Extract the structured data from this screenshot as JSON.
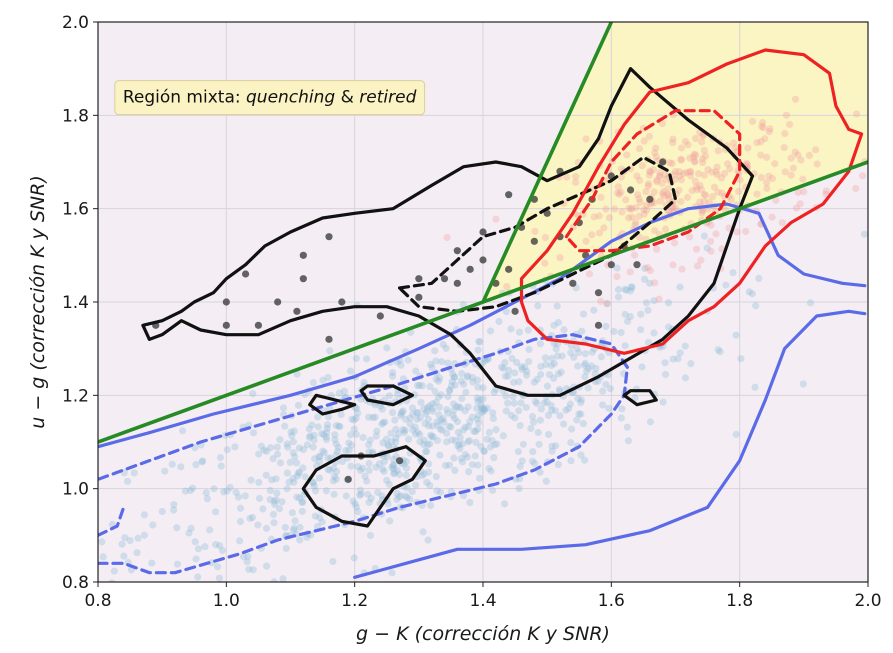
{
  "chart_data": {
    "type": "scatter",
    "xlabel_parts": [
      {
        "text": "g",
        "italic": true
      },
      {
        "text": " − ",
        "italic": false
      },
      {
        "text": "K",
        "italic": true
      },
      {
        "text": " (corrección K y SNR)",
        "italic": true
      }
    ],
    "ylabel_parts": [
      {
        "text": "u",
        "italic": true
      },
      {
        "text": " − ",
        "italic": false
      },
      {
        "text": "g",
        "italic": true
      },
      {
        "text": " (corrección K y SNR)",
        "italic": true
      }
    ],
    "xlim": [
      0.8,
      2.0
    ],
    "ylim": [
      0.8,
      2.0
    ],
    "xticks": [
      0.8,
      1.0,
      1.2,
      1.4,
      1.6,
      1.8,
      2.0
    ],
    "yticks": [
      0.8,
      1.0,
      1.2,
      1.4,
      1.6,
      1.8,
      2.0
    ],
    "xtick_labels": [
      "0.8",
      "1.0",
      "1.2",
      "1.4",
      "1.6",
      "1.8",
      "2.0"
    ],
    "ytick_labels": [
      "0.8",
      "1.0",
      "1.2",
      "1.4",
      "1.6",
      "1.8",
      "2.0"
    ],
    "grid": true,
    "annotation": {
      "parts": [
        {
          "text": "Región mixta: ",
          "italic": false
        },
        {
          "text": "quenching",
          "italic": true
        },
        {
          "text": " & ",
          "italic": false
        },
        {
          "text": "retired",
          "italic": true
        }
      ],
      "x": 0.82,
      "y": 1.84
    },
    "colors": {
      "background_region": "#f4eef4",
      "mixed_region": "#fbf5c4",
      "boundary": "#268a25",
      "blue": "#5b6be8",
      "red": "#ee2222",
      "black": "#111111",
      "blue_points": "#8fbad6",
      "red_points": "#f0a0a0",
      "black_points": "#333333"
    },
    "boundaries": [
      {
        "name": "green-line-lower",
        "points": [
          [
            0.8,
            1.1
          ],
          [
            2.0,
            1.7
          ]
        ]
      },
      {
        "name": "green-line-steep",
        "points": [
          [
            1.4,
            1.4
          ],
          [
            1.6,
            2.0
          ]
        ]
      }
    ],
    "mixed_region_polygon": [
      [
        1.4,
        1.4
      ],
      [
        1.6,
        2.0
      ],
      [
        2.0,
        2.0
      ],
      [
        2.0,
        1.7
      ]
    ],
    "contours": [
      {
        "color": "blue",
        "style": "solid",
        "points": [
          [
            0.8,
            1.09
          ],
          [
            0.88,
            1.12
          ],
          [
            0.98,
            1.16
          ],
          [
            1.1,
            1.2
          ],
          [
            1.2,
            1.24
          ],
          [
            1.3,
            1.3
          ],
          [
            1.38,
            1.35
          ],
          [
            1.45,
            1.4
          ],
          [
            1.52,
            1.45
          ],
          [
            1.6,
            1.53
          ],
          [
            1.66,
            1.57
          ],
          [
            1.72,
            1.6
          ],
          [
            1.78,
            1.61
          ],
          [
            1.83,
            1.59
          ],
          [
            1.86,
            1.5
          ],
          [
            1.9,
            1.46
          ],
          [
            1.96,
            1.44
          ],
          [
            1.995,
            1.435
          ]
        ]
      },
      {
        "color": "blue",
        "style": "solid",
        "points": [
          [
            1.2,
            0.81
          ],
          [
            1.28,
            0.84
          ],
          [
            1.36,
            0.87
          ],
          [
            1.46,
            0.87
          ],
          [
            1.56,
            0.88
          ],
          [
            1.66,
            0.91
          ],
          [
            1.75,
            0.96
          ],
          [
            1.8,
            1.06
          ],
          [
            1.84,
            1.19
          ],
          [
            1.87,
            1.3
          ],
          [
            1.92,
            1.37
          ],
          [
            1.97,
            1.38
          ],
          [
            1.995,
            1.375
          ]
        ]
      },
      {
        "color": "blue",
        "style": "dashed",
        "points": [
          [
            0.8,
            0.84
          ],
          [
            0.84,
            0.84
          ],
          [
            0.88,
            0.82
          ],
          [
            0.92,
            0.82
          ],
          [
            0.97,
            0.84
          ],
          [
            1.02,
            0.86
          ],
          [
            1.08,
            0.89
          ],
          [
            1.14,
            0.91
          ],
          [
            1.2,
            0.93
          ],
          [
            1.27,
            0.96
          ],
          [
            1.36,
            0.99
          ],
          [
            1.42,
            1.01
          ],
          [
            1.48,
            1.04
          ],
          [
            1.55,
            1.09
          ],
          [
            1.6,
            1.16
          ],
          [
            1.62,
            1.2
          ],
          [
            1.625,
            1.26
          ],
          [
            1.6,
            1.31
          ],
          [
            1.54,
            1.33
          ],
          [
            1.48,
            1.32
          ],
          [
            1.42,
            1.29
          ],
          [
            1.35,
            1.26
          ],
          [
            1.26,
            1.22
          ],
          [
            1.16,
            1.18
          ],
          [
            1.06,
            1.14
          ],
          [
            0.96,
            1.1
          ],
          [
            0.88,
            1.06
          ],
          [
            0.82,
            1.03
          ],
          [
            0.8,
            1.02
          ]
        ]
      },
      {
        "color": "blue",
        "style": "dashed",
        "points": [
          [
            0.8,
            0.9
          ],
          [
            0.83,
            0.92
          ],
          [
            0.84,
            0.96
          ]
        ]
      },
      {
        "color": "black",
        "style": "solid",
        "closed": true,
        "points": [
          [
            0.87,
            1.35
          ],
          [
            0.9,
            1.36
          ],
          [
            0.93,
            1.38
          ],
          [
            0.95,
            1.4
          ],
          [
            0.98,
            1.42
          ],
          [
            1.0,
            1.45
          ],
          [
            1.03,
            1.48
          ],
          [
            1.06,
            1.52
          ],
          [
            1.1,
            1.55
          ],
          [
            1.15,
            1.58
          ],
          [
            1.2,
            1.59
          ],
          [
            1.26,
            1.6
          ],
          [
            1.32,
            1.65
          ],
          [
            1.37,
            1.69
          ],
          [
            1.42,
            1.7
          ],
          [
            1.46,
            1.69
          ],
          [
            1.5,
            1.66
          ],
          [
            1.55,
            1.69
          ],
          [
            1.58,
            1.75
          ],
          [
            1.6,
            1.82
          ],
          [
            1.63,
            1.9
          ],
          [
            1.66,
            1.86
          ],
          [
            1.72,
            1.79
          ],
          [
            1.78,
            1.73
          ],
          [
            1.82,
            1.67
          ],
          [
            1.8,
            1.6
          ],
          [
            1.78,
            1.52
          ],
          [
            1.76,
            1.44
          ],
          [
            1.72,
            1.37
          ],
          [
            1.68,
            1.32
          ],
          [
            1.63,
            1.28
          ],
          [
            1.58,
            1.24
          ],
          [
            1.52,
            1.2
          ],
          [
            1.47,
            1.2
          ],
          [
            1.42,
            1.22
          ],
          [
            1.38,
            1.29
          ],
          [
            1.35,
            1.33
          ],
          [
            1.3,
            1.37
          ],
          [
            1.25,
            1.39
          ],
          [
            1.2,
            1.39
          ],
          [
            1.15,
            1.38
          ],
          [
            1.1,
            1.36
          ],
          [
            1.05,
            1.33
          ],
          [
            1.0,
            1.33
          ],
          [
            0.96,
            1.34
          ],
          [
            0.93,
            1.36
          ],
          [
            0.9,
            1.33
          ],
          [
            0.88,
            1.32
          ],
          [
            0.87,
            1.35
          ]
        ]
      },
      {
        "color": "black",
        "style": "dashed",
        "closed": true,
        "points": [
          [
            1.27,
            1.43
          ],
          [
            1.32,
            1.44
          ],
          [
            1.36,
            1.49
          ],
          [
            1.4,
            1.54
          ],
          [
            1.45,
            1.56
          ],
          [
            1.5,
            1.6
          ],
          [
            1.55,
            1.63
          ],
          [
            1.6,
            1.66
          ],
          [
            1.65,
            1.71
          ],
          [
            1.69,
            1.68
          ],
          [
            1.7,
            1.62
          ],
          [
            1.66,
            1.57
          ],
          [
            1.6,
            1.5
          ],
          [
            1.54,
            1.46
          ],
          [
            1.48,
            1.42
          ],
          [
            1.42,
            1.39
          ],
          [
            1.36,
            1.38
          ],
          [
            1.3,
            1.39
          ],
          [
            1.27,
            1.43
          ]
        ]
      },
      {
        "color": "black",
        "style": "solid",
        "closed": true,
        "points": [
          [
            1.14,
            1.2
          ],
          [
            1.17,
            1.19
          ],
          [
            1.2,
            1.18
          ],
          [
            1.18,
            1.17
          ],
          [
            1.15,
            1.16
          ],
          [
            1.13,
            1.18
          ],
          [
            1.14,
            1.2
          ]
        ]
      },
      {
        "color": "black",
        "style": "solid",
        "closed": true,
        "points": [
          [
            1.22,
            1.22
          ],
          [
            1.26,
            1.22
          ],
          [
            1.29,
            1.2
          ],
          [
            1.26,
            1.18
          ],
          [
            1.22,
            1.19
          ],
          [
            1.21,
            1.21
          ],
          [
            1.22,
            1.22
          ]
        ]
      },
      {
        "color": "black",
        "style": "solid",
        "closed": true,
        "points": [
          [
            1.63,
            1.21
          ],
          [
            1.66,
            1.21
          ],
          [
            1.67,
            1.19
          ],
          [
            1.64,
            1.18
          ],
          [
            1.62,
            1.2
          ],
          [
            1.63,
            1.21
          ]
        ]
      },
      {
        "color": "black",
        "style": "solid",
        "closed": true,
        "points": [
          [
            1.12,
            1.0
          ],
          [
            1.14,
            1.04
          ],
          [
            1.18,
            1.07
          ],
          [
            1.23,
            1.07
          ],
          [
            1.28,
            1.09
          ],
          [
            1.31,
            1.06
          ],
          [
            1.29,
            1.02
          ],
          [
            1.26,
            1.0
          ],
          [
            1.24,
            0.96
          ],
          [
            1.22,
            0.92
          ],
          [
            1.18,
            0.93
          ],
          [
            1.14,
            0.96
          ],
          [
            1.12,
            1.0
          ]
        ]
      },
      {
        "color": "red",
        "style": "solid",
        "closed": true,
        "points": [
          [
            1.46,
            1.45
          ],
          [
            1.5,
            1.51
          ],
          [
            1.54,
            1.59
          ],
          [
            1.58,
            1.69
          ],
          [
            1.62,
            1.78
          ],
          [
            1.66,
            1.85
          ],
          [
            1.72,
            1.87
          ],
          [
            1.78,
            1.91
          ],
          [
            1.84,
            1.94
          ],
          [
            1.9,
            1.93
          ],
          [
            1.94,
            1.89
          ],
          [
            1.95,
            1.82
          ],
          [
            1.97,
            1.77
          ],
          [
            1.99,
            1.76
          ],
          [
            1.97,
            1.68
          ],
          [
            1.93,
            1.61
          ],
          [
            1.88,
            1.57
          ],
          [
            1.84,
            1.52
          ],
          [
            1.8,
            1.44
          ],
          [
            1.76,
            1.39
          ],
          [
            1.72,
            1.36
          ],
          [
            1.68,
            1.31
          ],
          [
            1.62,
            1.29
          ],
          [
            1.56,
            1.31
          ],
          [
            1.5,
            1.32
          ],
          [
            1.47,
            1.36
          ],
          [
            1.46,
            1.4
          ],
          [
            1.46,
            1.45
          ]
        ]
      },
      {
        "color": "red",
        "style": "dashed",
        "closed": true,
        "points": [
          [
            1.53,
            1.54
          ],
          [
            1.57,
            1.62
          ],
          [
            1.6,
            1.7
          ],
          [
            1.64,
            1.76
          ],
          [
            1.7,
            1.81
          ],
          [
            1.76,
            1.81
          ],
          [
            1.8,
            1.76
          ],
          [
            1.8,
            1.68
          ],
          [
            1.77,
            1.6
          ],
          [
            1.72,
            1.55
          ],
          [
            1.66,
            1.52
          ],
          [
            1.6,
            1.51
          ],
          [
            1.55,
            1.51
          ],
          [
            1.53,
            1.54
          ]
        ]
      }
    ],
    "series": [
      {
        "name": "",
        "color": "blue_points",
        "center": [
          1.3,
          1.12
        ],
        "spread": [
          0.22,
          0.14
        ],
        "tilt": 0.5,
        "count": 900
      },
      {
        "name": "",
        "color": "red_points",
        "center": [
          1.72,
          1.64
        ],
        "spread": [
          0.1,
          0.1
        ],
        "tilt": 0.3,
        "count": 320
      },
      {
        "name": "",
        "color": "black_points",
        "points": [
          [
            0.89,
            1.35
          ],
          [
            1.0,
            1.35
          ],
          [
            1.05,
            1.35
          ],
          [
            1.0,
            1.4
          ],
          [
            1.08,
            1.4
          ],
          [
            1.12,
            1.45
          ],
          [
            1.03,
            1.46
          ],
          [
            1.12,
            1.5
          ],
          [
            1.16,
            1.54
          ],
          [
            1.18,
            1.4
          ],
          [
            1.16,
            1.32
          ],
          [
            1.11,
            1.38
          ],
          [
            1.24,
            1.37
          ],
          [
            1.3,
            1.45
          ],
          [
            1.34,
            1.45
          ],
          [
            1.36,
            1.51
          ],
          [
            1.38,
            1.47
          ],
          [
            1.4,
            1.49
          ],
          [
            1.42,
            1.44
          ],
          [
            1.44,
            1.47
          ],
          [
            1.46,
            1.56
          ],
          [
            1.48,
            1.53
          ],
          [
            1.44,
            1.63
          ],
          [
            1.5,
            1.59
          ],
          [
            1.52,
            1.54
          ],
          [
            1.55,
            1.57
          ],
          [
            1.57,
            1.62
          ],
          [
            1.6,
            1.67
          ],
          [
            1.63,
            1.64
          ],
          [
            1.66,
            1.62
          ],
          [
            1.68,
            1.7
          ],
          [
            1.56,
            1.5
          ],
          [
            1.6,
            1.48
          ],
          [
            1.62,
            1.52
          ],
          [
            1.58,
            1.42
          ],
          [
            1.64,
            1.48
          ],
          [
            1.21,
            1.07
          ],
          [
            1.19,
            1.02
          ],
          [
            1.27,
            1.06
          ],
          [
            1.48,
            1.62
          ],
          [
            1.52,
            1.68
          ],
          [
            1.4,
            1.55
          ],
          [
            1.36,
            1.44
          ],
          [
            1.3,
            1.41
          ],
          [
            1.54,
            1.44
          ],
          [
            1.45,
            1.38
          ],
          [
            1.58,
            1.35
          ]
        ]
      }
    ]
  }
}
